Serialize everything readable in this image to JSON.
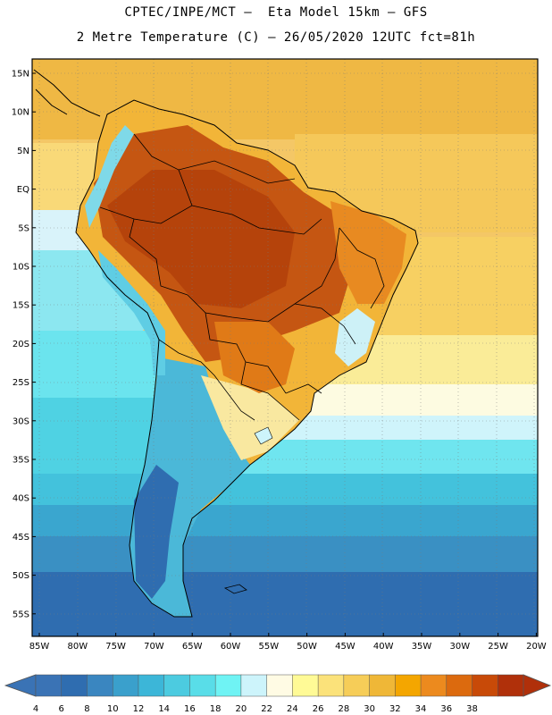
{
  "header": {
    "line1": "CPTEC/INPE/MCT –  Eta Model 15km – GFS",
    "line2": "2 Metre Temperature (C) – 26/05/2020 12UTC fct=81h"
  },
  "axes": {
    "lat_labels": [
      "15N",
      "10N",
      "5N",
      "EQ",
      "5S",
      "10S",
      "15S",
      "20S",
      "25S",
      "30S",
      "35S",
      "40S",
      "45S",
      "50S",
      "55S"
    ],
    "lon_labels": [
      "85W",
      "80W",
      "75W",
      "70W",
      "65W",
      "60W",
      "55W",
      "50W",
      "45W",
      "40W",
      "35W",
      "30W",
      "25W",
      "20W"
    ]
  },
  "colorbar": {
    "labels": [
      "4",
      "6",
      "8",
      "10",
      "12",
      "14",
      "16",
      "18",
      "20",
      "22",
      "24",
      "26",
      "28",
      "30",
      "32",
      "34",
      "36",
      "38"
    ],
    "colors": [
      "#3a73b5",
      "#2f6db0",
      "#3a86c0",
      "#3aa0cc",
      "#3cb6d8",
      "#4ccbe0",
      "#59dde8",
      "#6ff3f4",
      "#cdf4fb",
      "#fffbe4",
      "#fffa96",
      "#fbe27a",
      "#f6cd58",
      "#efb737",
      "#f4a600",
      "#ec8a1e",
      "#dc6a0e",
      "#c84a08",
      "#b0300a"
    ],
    "low_arrow_color": "#3a73b5",
    "high_arrow_color": "#b0300a"
  },
  "chart_data": {
    "type": "heatmap",
    "title": "2 Metre Temperature (C) – 26/05/2020 12UTC fct=81h",
    "model": "CPTEC/INPE/MCT Eta Model 15km – GFS",
    "variable": "2 Metre Temperature",
    "units": "C",
    "init_time": "26/05/2020 12UTC",
    "forecast_hour": 81,
    "lon_range": [
      -86,
      -20
    ],
    "lat_range": [
      -58,
      17
    ],
    "colorbar_ticks": [
      4,
      6,
      8,
      10,
      12,
      14,
      16,
      18,
      20,
      22,
      24,
      26,
      28,
      30,
      32,
      34,
      36,
      38
    ]
  }
}
